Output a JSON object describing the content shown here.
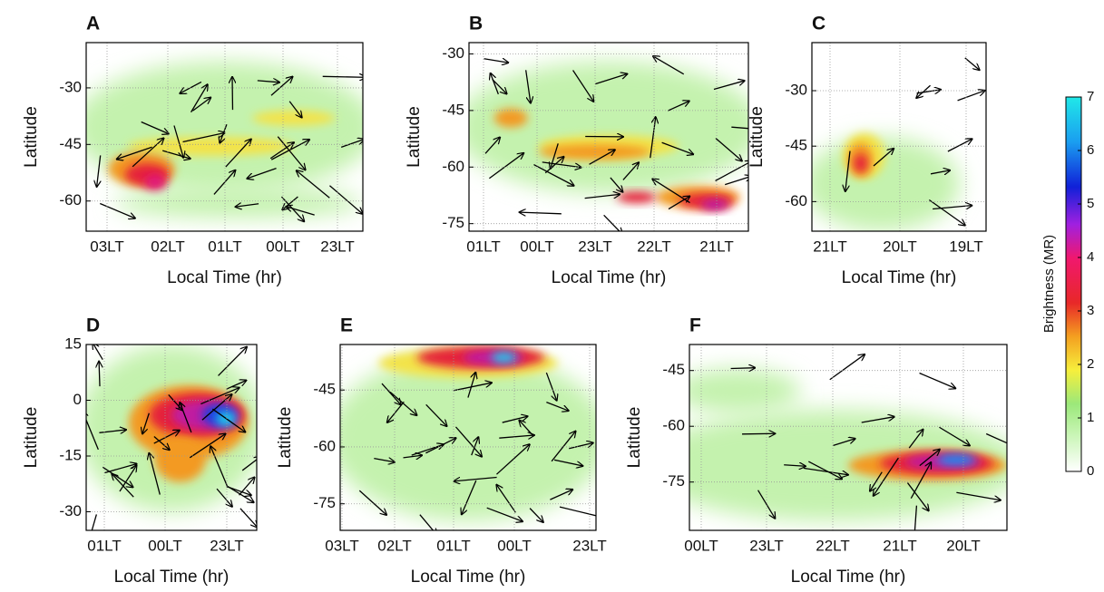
{
  "chart_data": [
    {
      "type": "heatmap",
      "label": "A",
      "xlabel": "Local Time (hr)",
      "ylabel": "Latitude",
      "categories": [
        "03LT",
        "02LT",
        "01LT",
        "00LT",
        "23LT"
      ],
      "ylim": [
        -68,
        -18
      ],
      "yticks": [
        -30,
        -45,
        -60
      ]
    },
    {
      "type": "heatmap",
      "label": "B",
      "xlabel": "Local Time (hr)",
      "ylabel": "Latitude",
      "categories": [
        "01LT",
        "00LT",
        "23LT",
        "22LT",
        "21LT"
      ],
      "ylim": [
        -77,
        -27
      ],
      "yticks": [
        -30,
        -45,
        -60,
        -75
      ]
    },
    {
      "type": "heatmap",
      "label": "C",
      "xlabel": "Local Time (hr)",
      "ylabel": "Latitude",
      "categories": [
        "21LT",
        "20LT",
        "19LT"
      ],
      "ylim": [
        -68,
        -17
      ],
      "yticks": [
        -30,
        -45,
        -60
      ]
    },
    {
      "type": "heatmap",
      "label": "D",
      "xlabel": "Local Time (hr)",
      "ylabel": "Latitude",
      "categories": [
        "01LT",
        "00LT",
        "23LT"
      ],
      "ylim": [
        -35,
        15
      ],
      "yticks": [
        15,
        0,
        -15,
        -30
      ]
    },
    {
      "type": "heatmap",
      "label": "E",
      "xlabel": "Local Time (hr)",
      "ylabel": "Latitude",
      "categories": [
        "03LT",
        "02LT",
        "01LT",
        "00LT",
        "23LT"
      ],
      "ylim": [
        -82,
        -33
      ],
      "yticks": [
        -45,
        -60,
        -75
      ]
    },
    {
      "type": "heatmap",
      "label": "F",
      "xlabel": "Local Time (hr)",
      "ylabel": "Latitude",
      "categories": [
        "00LT",
        "23LT",
        "22LT",
        "21LT",
        "20LT"
      ],
      "ylim": [
        -88,
        -38
      ],
      "yticks": [
        -45,
        -60,
        -75
      ]
    }
  ],
  "colorbar": {
    "label": "Brightness (MR)",
    "lim": [
      0,
      7
    ],
    "ticks": [
      0,
      1,
      2,
      3,
      4,
      5,
      6,
      7
    ]
  }
}
